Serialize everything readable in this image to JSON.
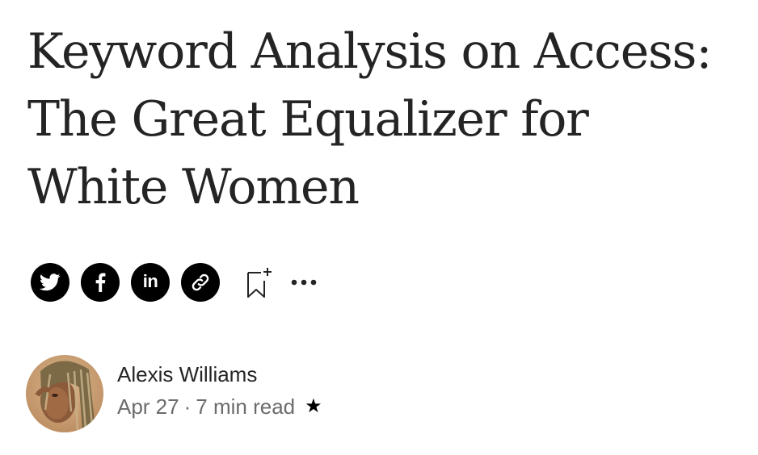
{
  "article": {
    "title": "Keyword Analysis on Access: The Great Equalizer for White Women"
  },
  "share": {
    "buttons": [
      {
        "name": "twitter",
        "icon": "twitter-icon"
      },
      {
        "name": "facebook",
        "icon": "facebook-icon"
      },
      {
        "name": "linkedin",
        "icon": "linkedin-icon",
        "label": "in"
      },
      {
        "name": "copy-link",
        "icon": "link-icon"
      }
    ],
    "bookmark_icon": "bookmark-add-icon",
    "more_icon": "more-horizontal-icon"
  },
  "author": {
    "name": "Alexis Williams",
    "date": "Apr 27",
    "separator": "·",
    "read_time": "7 min read",
    "member_badge": "★"
  },
  "colors": {
    "text": "#242424",
    "muted": "#6b6b6b",
    "icon_bg": "#000000",
    "background": "#ffffff"
  }
}
